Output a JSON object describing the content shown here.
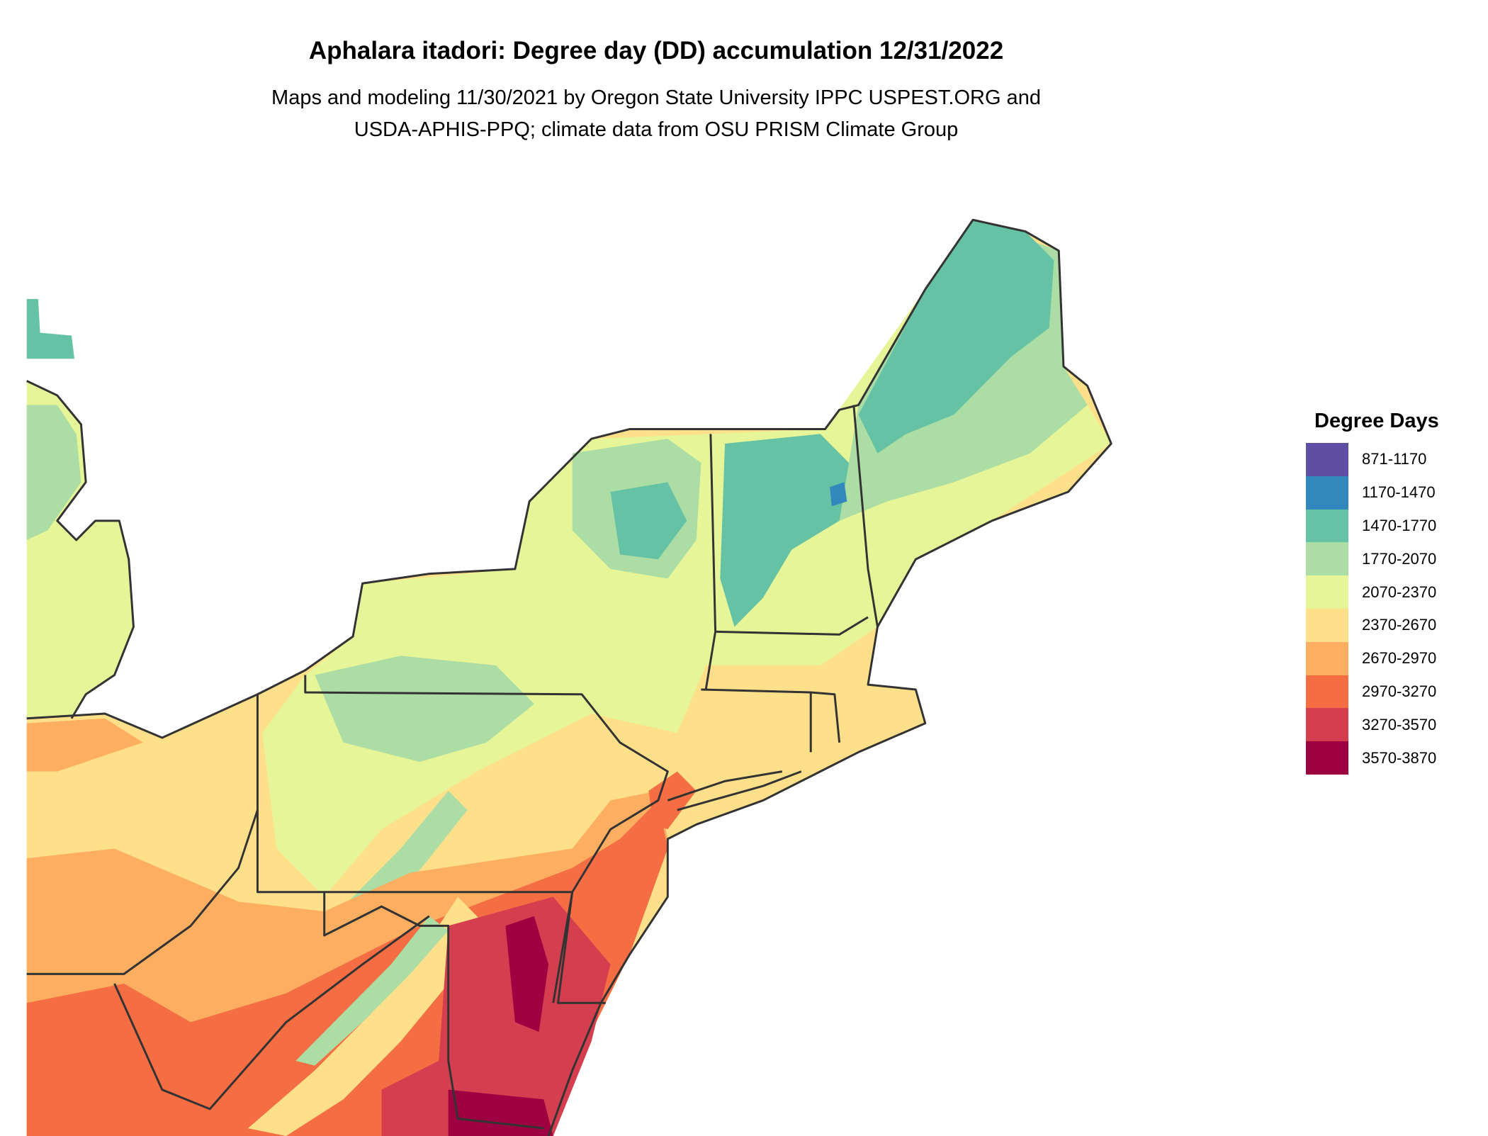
{
  "title": "Aphalara itadori: Degree day (DD) accumulation 12/31/2022",
  "subtitle_lines": [
    "Maps and modeling 11/30/2021 by Oregon State University IPPC USPEST.ORG and",
    "USDA-APHIS-PPQ; climate data from OSU PRISM Climate Group"
  ],
  "legend": {
    "title": "Degree Days",
    "items": [
      {
        "label": "871-1170",
        "color": "#5e4fa2"
      },
      {
        "label": "1170-1470",
        "color": "#3288bd"
      },
      {
        "label": "1470-1770",
        "color": "#66c2a5"
      },
      {
        "label": "1770-2070",
        "color": "#abdda4"
      },
      {
        "label": "2070-2370",
        "color": "#e6f598"
      },
      {
        "label": "2370-2670",
        "color": "#fee08b"
      },
      {
        "label": "2670-2970",
        "color": "#fdae61"
      },
      {
        "label": "2970-3270",
        "color": "#f46d43"
      },
      {
        "label": "3270-3570",
        "color": "#d53e4f"
      },
      {
        "label": "3570-3870",
        "color": "#9e0142"
      }
    ]
  },
  "map": {
    "border_color": "#333333"
  }
}
